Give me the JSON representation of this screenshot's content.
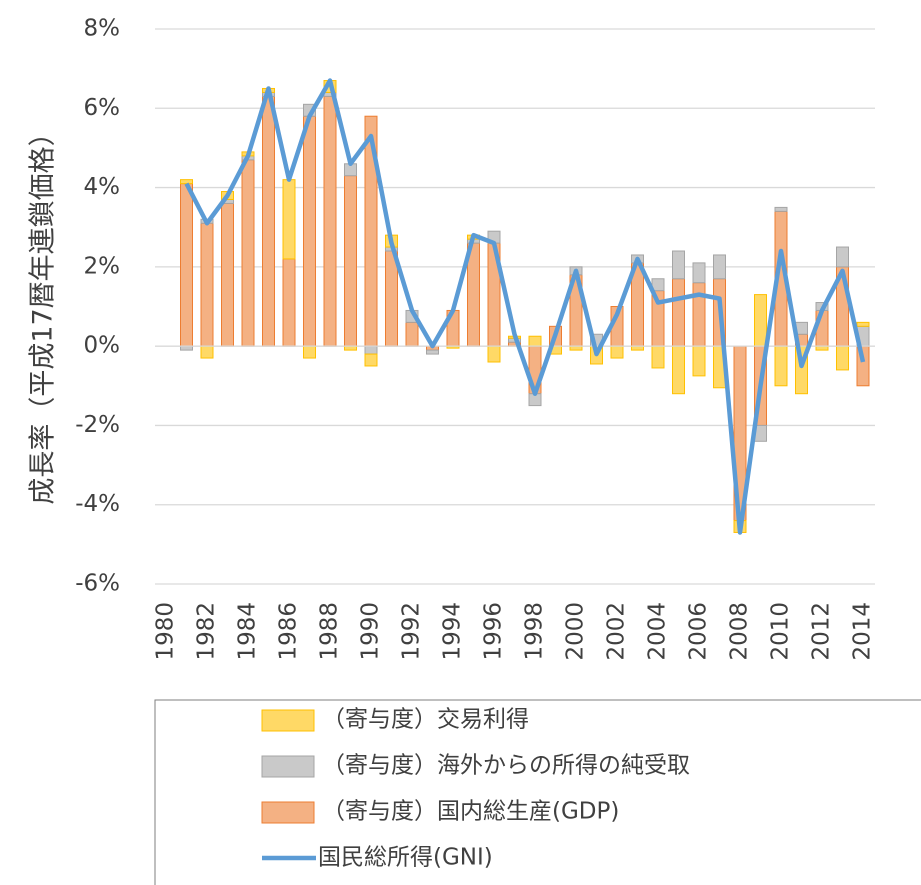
{
  "chart_data": {
    "type": "bar",
    "y_axis_label": "成長率（平成17暦年連鎖価格）",
    "categories": [
      "1980",
      null,
      "1982",
      null,
      "1984",
      null,
      "1986",
      null,
      "1988",
      null,
      "1990",
      null,
      "1992",
      null,
      "1994",
      null,
      "1996",
      null,
      "1998",
      null,
      "2000",
      null,
      "2002",
      null,
      "2004",
      null,
      "2006",
      null,
      "2008",
      null,
      "2010",
      null,
      "2012",
      null,
      "2014"
    ],
    "ylim": [
      -6,
      8
    ],
    "yticks": [
      {
        "value": -6,
        "label": "-6%"
      },
      {
        "value": -4,
        "label": "-4%"
      },
      {
        "value": -2,
        "label": "-2%"
      },
      {
        "value": 0,
        "label": "0%"
      },
      {
        "value": 2,
        "label": "2%"
      },
      {
        "value": 4,
        "label": "4%"
      },
      {
        "value": 6,
        "label": "6%"
      },
      {
        "value": 8,
        "label": "8%"
      }
    ],
    "grid": true,
    "series": [
      {
        "name": "（寄与度）国内総生産(GDP)",
        "type": "bar",
        "color": "#f4b183",
        "edge": "#ed7d31",
        "values": [
          null,
          4.1,
          3.1,
          3.6,
          4.7,
          6.3,
          2.2,
          5.8,
          6.3,
          4.3,
          5.8,
          2.4,
          0.6,
          -0.1,
          0.9,
          2.6,
          2.6,
          0.1,
          -1.2,
          0.5,
          1.8,
          0.0,
          1.0,
          2.1,
          1.4,
          1.7,
          1.6,
          1.7,
          -4.4,
          -2.0,
          3.4,
          0.3,
          0.9,
          2.0,
          -1.0
        ]
      },
      {
        "name": "（寄与度）海外からの所得の純受取",
        "type": "bar",
        "color": "#c9c9c9",
        "edge": "#a5a5a5",
        "values": [
          null,
          -0.1,
          0.1,
          0.1,
          0.1,
          0.1,
          0.0,
          0.3,
          0.1,
          0.3,
          -0.2,
          0.1,
          0.3,
          -0.1,
          0.0,
          0.1,
          0.3,
          0.1,
          -0.3,
          0.0,
          0.2,
          0.3,
          0.0,
          0.2,
          0.3,
          0.7,
          0.5,
          0.6,
          0.0,
          -0.4,
          0.1,
          0.3,
          0.2,
          0.5,
          0.5
        ]
      },
      {
        "name": "（寄与度）交易利得",
        "type": "bar",
        "color": "#ffd966",
        "edge": "#ffc000",
        "values": [
          null,
          0.1,
          -0.3,
          0.2,
          0.1,
          0.1,
          2.0,
          -0.3,
          0.3,
          -0.1,
          -0.3,
          0.3,
          0.0,
          0.0,
          -0.05,
          0.1,
          -0.4,
          0.05,
          0.25,
          -0.2,
          -0.1,
          -0.45,
          -0.3,
          -0.1,
          -0.55,
          -1.2,
          -0.75,
          -1.05,
          -0.3,
          1.3,
          -1.0,
          -1.2,
          -0.1,
          -0.6,
          0.1
        ]
      },
      {
        "name": "国民総所得(GNI)",
        "type": "line",
        "color": "#5b9bd5",
        "values": [
          null,
          4.1,
          3.1,
          3.8,
          4.8,
          6.5,
          4.2,
          5.8,
          6.7,
          4.6,
          5.3,
          2.6,
          0.9,
          0.0,
          0.9,
          2.8,
          2.6,
          0.3,
          -1.2,
          0.3,
          1.9,
          -0.2,
          0.8,
          2.2,
          1.1,
          1.2,
          1.3,
          1.2,
          -4.7,
          -1.0,
          2.4,
          -0.5,
          0.9,
          1.9,
          -0.4
        ]
      }
    ],
    "legend_order": [
      2,
      1,
      0,
      3
    ]
  }
}
